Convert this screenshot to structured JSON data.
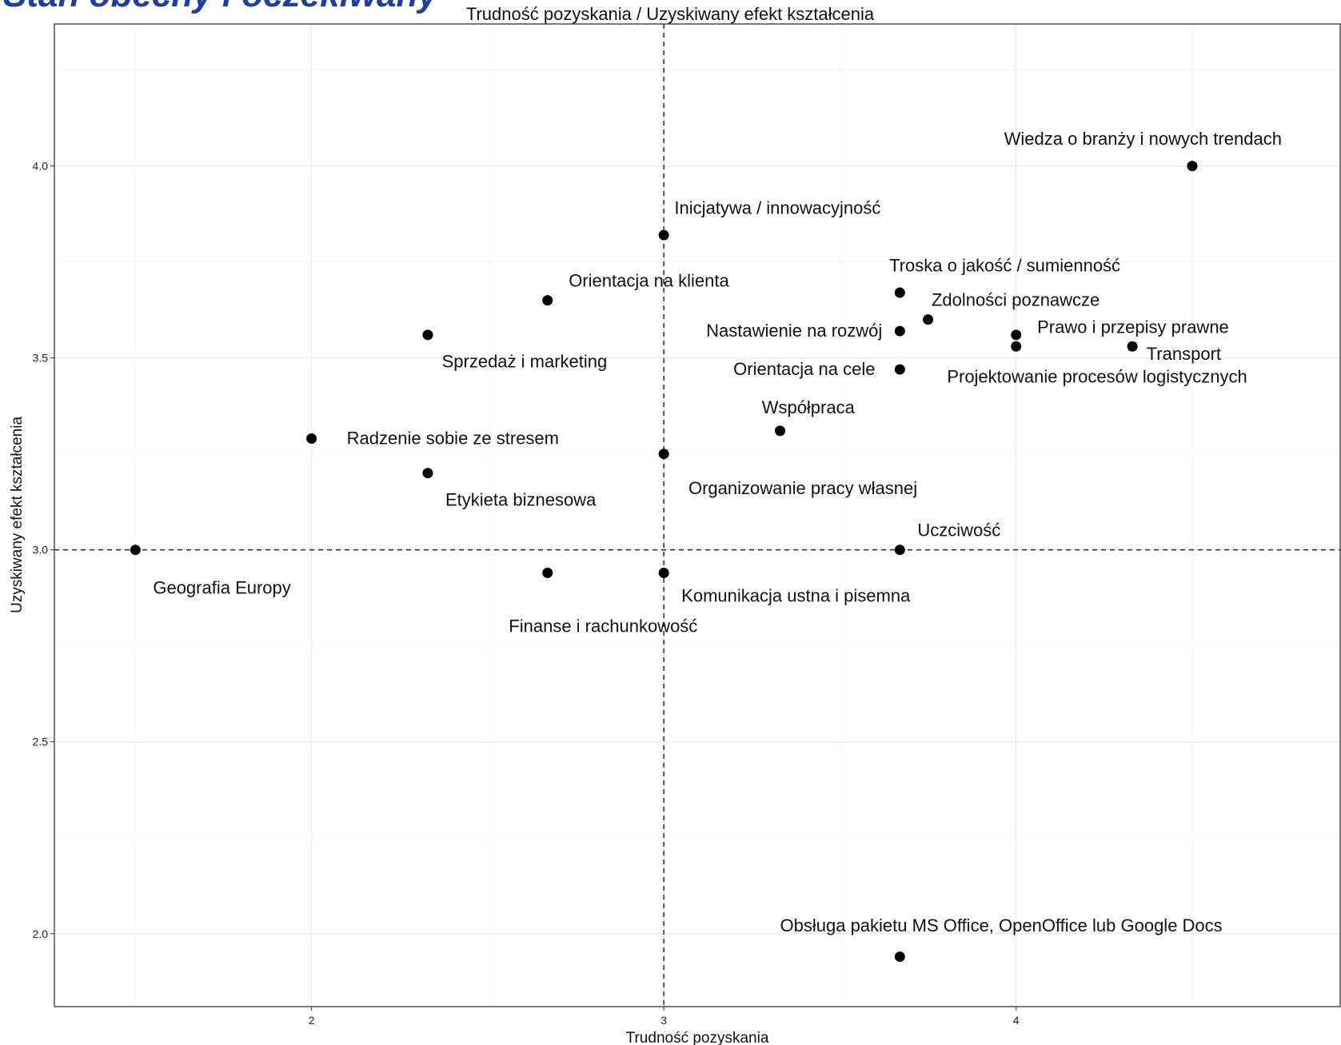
{
  "slide_header": {
    "text": "Stan obecny i oczekiwany",
    "color": "#1f3f99"
  },
  "chart_data": {
    "type": "scatter",
    "title": "Trudność pozyskania / Uzyskiwany efekt kształcenia",
    "xlabel": "Trudność pozyskania",
    "ylabel": "Uzyskiwany efekt kształcenia",
    "xlim": [
      1.27,
      4.92
    ],
    "ylim": [
      1.81,
      4.37
    ],
    "x_ticks": [
      2,
      3,
      4
    ],
    "y_ticks": [
      2.0,
      2.5,
      3.0,
      3.5,
      4.0
    ],
    "x_tick_labels": [
      "2",
      "3",
      "4"
    ],
    "y_tick_labels": [
      "2.0",
      "2.5",
      "3.0",
      "3.5",
      "4.0"
    ],
    "grid": true,
    "reference_lines": {
      "x": 3.0,
      "y": 3.0,
      "style": "dashed"
    },
    "marker_color": "#000000",
    "points": [
      {
        "label": "Wiedza o branży i nowych trendach",
        "x": 4.5,
        "y": 4.0,
        "anchor": "middle",
        "dx": -0.14,
        "dy": 0.07
      },
      {
        "label": "Inicjatywa / innowacyjność",
        "x": 3.0,
        "y": 3.82,
        "anchor": "start",
        "dx": 0.03,
        "dy": 0.07
      },
      {
        "label": "Troska o jakość / sumienność",
        "x": 3.67,
        "y": 3.67,
        "anchor": "start",
        "dx": -0.03,
        "dy": 0.07
      },
      {
        "label": "Orientacja na klienta",
        "x": 2.67,
        "y": 3.65,
        "anchor": "start",
        "dx": 0.06,
        "dy": 0.05
      },
      {
        "label": "Zdolności poznawcze",
        "x": 3.75,
        "y": 3.6,
        "anchor": "start",
        "dx": 0.01,
        "dy": 0.05
      },
      {
        "label": "Sprzedaż i marketing",
        "x": 2.33,
        "y": 3.56,
        "anchor": "start",
        "dx": 0.04,
        "dy": -0.07
      },
      {
        "label": "Prawo i przepisy prawne",
        "x": 4.0,
        "y": 3.56,
        "anchor": "start",
        "dx": 0.06,
        "dy": 0.02
      },
      {
        "label": "Nastawienie na rozwój",
        "x": 3.67,
        "y": 3.57,
        "anchor": "end",
        "dx": -0.05,
        "dy": 0.0
      },
      {
        "label": "Transport",
        "x": 4.33,
        "y": 3.53,
        "anchor": "start",
        "dx": 0.04,
        "dy": -0.02
      },
      {
        "label": "Projektowanie procesów logistycznych",
        "x": 4.0,
        "y": 3.53,
        "anchor": "middle",
        "dx": 0.23,
        "dy": -0.08
      },
      {
        "label": "Orientacja na cele",
        "x": 3.67,
        "y": 3.47,
        "anchor": "end",
        "dx": -0.07,
        "dy": 0.0
      },
      {
        "label": "Współpraca",
        "x": 3.33,
        "y": 3.31,
        "anchor": "middle",
        "dx": 0.08,
        "dy": 0.06
      },
      {
        "label": "Radzenie sobie ze stresem",
        "x": 2.0,
        "y": 3.29,
        "anchor": "start",
        "dx": 0.1,
        "dy": 0.0
      },
      {
        "label": "Organizowanie pracy własnej",
        "x": 3.0,
        "y": 3.25,
        "anchor": "start",
        "dx": 0.07,
        "dy": -0.09
      },
      {
        "label": "Etykieta biznesowa",
        "x": 2.33,
        "y": 3.2,
        "anchor": "start",
        "dx": 0.05,
        "dy": -0.07
      },
      {
        "label": "Geografia Europy",
        "x": 1.5,
        "y": 3.0,
        "anchor": "start",
        "dx": 0.05,
        "dy": -0.1
      },
      {
        "label": "Uczciwość",
        "x": 3.67,
        "y": 3.0,
        "anchor": "start",
        "dx": 0.05,
        "dy": 0.05
      },
      {
        "label": "Finanse i rachunkowość",
        "x": 2.67,
        "y": 2.94,
        "anchor": "start",
        "dx": -0.11,
        "dy": -0.14
      },
      {
        "label": "Komunikacja ustna i pisemna",
        "x": 3.0,
        "y": 2.94,
        "anchor": "start",
        "dx": 0.05,
        "dy": -0.06
      },
      {
        "label": "Obsługa pakietu MS Office, OpenOffice lub Google Docs",
        "x": 3.67,
        "y": 1.94,
        "anchor": "start",
        "dx": -0.34,
        "dy": 0.08
      }
    ]
  }
}
